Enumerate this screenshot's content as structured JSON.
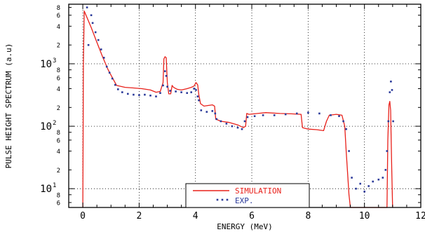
{
  "chart_data": {
    "type": "line",
    "title": "",
    "xlabel": "ENERGY (MeV)",
    "ylabel": "PULSE HEIGHT SPECTRUM (a.u)",
    "xlim": [
      -0.5,
      12
    ],
    "ylim": [
      5,
      9000
    ],
    "yscale": "log",
    "grid": true,
    "legend_position": "bottom-center",
    "x_ticks": [
      "0",
      "2",
      "4",
      "6",
      "8",
      "10",
      "12"
    ],
    "y_major_ticks": [
      {
        "mantissa": "10",
        "exponent": "1",
        "value": 10
      },
      {
        "mantissa": "10",
        "exponent": "2",
        "value": 100
      },
      {
        "mantissa": "10",
        "exponent": "3",
        "value": 1000
      }
    ],
    "y_minor_ticks": [
      {
        "label": "6",
        "value": 6
      },
      {
        "label": "8",
        "value": 8
      },
      {
        "label": "2",
        "value": 20
      },
      {
        "label": "4",
        "value": 40
      },
      {
        "label": "6",
        "value": 60
      },
      {
        "label": "8",
        "value": 80
      },
      {
        "label": "2",
        "value": 200
      },
      {
        "label": "4",
        "value": 400
      },
      {
        "label": "6",
        "value": 600
      },
      {
        "label": "8",
        "value": 800
      },
      {
        "label": "2",
        "value": 2000
      },
      {
        "label": "4",
        "value": 4000
      },
      {
        "label": "6",
        "value": 6000
      },
      {
        "label": "8",
        "value": 8000
      }
    ],
    "colors": {
      "simulation": "#e8201a",
      "experiment": "#2b3a9a"
    },
    "series": [
      {
        "name": "SIMULATION",
        "style": "line",
        "points": [
          [
            0.0,
            5
          ],
          [
            0.02,
            1000
          ],
          [
            0.05,
            7000
          ],
          [
            0.15,
            5500
          ],
          [
            0.3,
            3800
          ],
          [
            0.5,
            2200
          ],
          [
            0.7,
            1300
          ],
          [
            0.9,
            800
          ],
          [
            1.05,
            600
          ],
          [
            1.2,
            450
          ],
          [
            1.5,
            420
          ],
          [
            1.8,
            410
          ],
          [
            2.1,
            400
          ],
          [
            2.4,
            380
          ],
          [
            2.6,
            350
          ],
          [
            2.75,
            360
          ],
          [
            2.85,
            500
          ],
          [
            2.88,
            1200
          ],
          [
            2.92,
            1300
          ],
          [
            2.96,
            1250
          ],
          [
            3.0,
            500
          ],
          [
            3.05,
            330
          ],
          [
            3.12,
            330
          ],
          [
            3.17,
            450
          ],
          [
            3.22,
            420
          ],
          [
            3.35,
            390
          ],
          [
            3.5,
            380
          ],
          [
            3.7,
            400
          ],
          [
            3.85,
            420
          ],
          [
            3.95,
            440
          ],
          [
            4.02,
            500
          ],
          [
            4.08,
            460
          ],
          [
            4.12,
            320
          ],
          [
            4.18,
            230
          ],
          [
            4.3,
            210
          ],
          [
            4.6,
            220
          ],
          [
            4.68,
            210
          ],
          [
            4.72,
            130
          ],
          [
            4.9,
            120
          ],
          [
            5.2,
            115
          ],
          [
            5.5,
            105
          ],
          [
            5.7,
            95
          ],
          [
            5.78,
            100
          ],
          [
            5.82,
            160
          ],
          [
            5.9,
            155
          ],
          [
            6.2,
            160
          ],
          [
            6.5,
            165
          ],
          [
            7.0,
            160
          ],
          [
            7.4,
            158
          ],
          [
            7.75,
            155
          ],
          [
            7.8,
            95
          ],
          [
            8.0,
            90
          ],
          [
            8.3,
            88
          ],
          [
            8.55,
            85
          ],
          [
            8.65,
            120
          ],
          [
            8.75,
            150
          ],
          [
            9.0,
            155
          ],
          [
            9.2,
            150
          ],
          [
            9.3,
            100
          ],
          [
            9.35,
            40
          ],
          [
            9.4,
            18
          ],
          [
            9.45,
            8
          ],
          [
            9.5,
            5
          ],
          [
            10.8,
            5
          ],
          [
            10.83,
            60
          ],
          [
            10.87,
            220
          ],
          [
            10.9,
            250
          ],
          [
            10.93,
            180
          ],
          [
            10.97,
            20
          ],
          [
            11.0,
            5
          ]
        ]
      },
      {
        "name": "EXP.",
        "style": "points",
        "points": [
          [
            0.15,
            8000
          ],
          [
            0.2,
            2000
          ],
          [
            0.3,
            6000
          ],
          [
            0.35,
            4500
          ],
          [
            0.45,
            3200
          ],
          [
            0.55,
            2400
          ],
          [
            0.65,
            1700
          ],
          [
            0.75,
            1250
          ],
          [
            0.85,
            900
          ],
          [
            0.95,
            720
          ],
          [
            1.05,
            580
          ],
          [
            1.15,
            460
          ],
          [
            1.25,
            390
          ],
          [
            1.4,
            350
          ],
          [
            1.6,
            330
          ],
          [
            1.8,
            320
          ],
          [
            2.0,
            315
          ],
          [
            2.2,
            320
          ],
          [
            2.4,
            310
          ],
          [
            2.6,
            300
          ],
          [
            2.75,
            340
          ],
          [
            2.85,
            450
          ],
          [
            2.92,
            760
          ],
          [
            2.96,
            640
          ],
          [
            3.0,
            430
          ],
          [
            3.1,
            370
          ],
          [
            3.3,
            360
          ],
          [
            3.5,
            350
          ],
          [
            3.7,
            340
          ],
          [
            3.85,
            350
          ],
          [
            3.95,
            400
          ],
          [
            4.02,
            380
          ],
          [
            4.08,
            300
          ],
          [
            4.12,
            260
          ],
          [
            4.2,
            180
          ],
          [
            4.4,
            170
          ],
          [
            4.6,
            175
          ],
          [
            4.7,
            160
          ],
          [
            4.75,
            130
          ],
          [
            4.9,
            120
          ],
          [
            5.1,
            110
          ],
          [
            5.3,
            100
          ],
          [
            5.5,
            95
          ],
          [
            5.65,
            90
          ],
          [
            5.75,
            120
          ],
          [
            5.85,
            140
          ],
          [
            6.1,
            145
          ],
          [
            6.4,
            150
          ],
          [
            6.8,
            150
          ],
          [
            7.2,
            155
          ],
          [
            7.6,
            160
          ],
          [
            8.0,
            165
          ],
          [
            8.4,
            160
          ],
          [
            8.8,
            150
          ],
          [
            9.1,
            145
          ],
          [
            9.25,
            120
          ],
          [
            9.35,
            90
          ],
          [
            9.45,
            40
          ],
          [
            9.55,
            15
          ],
          [
            9.7,
            10
          ],
          [
            9.85,
            12
          ],
          [
            10.0,
            9
          ],
          [
            10.15,
            11
          ],
          [
            10.3,
            13
          ],
          [
            10.5,
            14
          ],
          [
            10.65,
            15
          ],
          [
            10.75,
            20
          ],
          [
            10.8,
            40
          ],
          [
            10.85,
            120
          ],
          [
            10.9,
            350
          ],
          [
            10.94,
            520
          ],
          [
            10.98,
            380
          ],
          [
            11.02,
            120
          ]
        ]
      }
    ]
  }
}
